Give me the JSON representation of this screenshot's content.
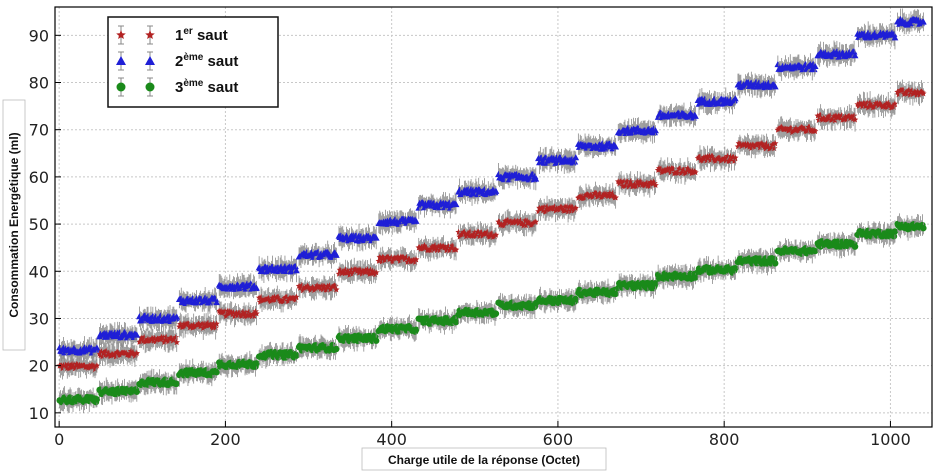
{
  "chart_data": {
    "type": "scatter",
    "xlabel": "Charge utile de la réponse (Octet)",
    "ylabel": "Consommation Energétique (ml)",
    "xlim": [
      -5,
      1050
    ],
    "ylim": [
      7,
      96
    ],
    "xticks": [
      0,
      200,
      400,
      600,
      800,
      1000
    ],
    "yticks": [
      10,
      20,
      30,
      40,
      50,
      60,
      70,
      80,
      90
    ],
    "x_tick_labels": [
      "0",
      "200",
      "400",
      "600",
      "800",
      "1000"
    ],
    "y_tick_labels": [
      "10",
      "20",
      "30",
      "40",
      "50",
      "60",
      "70",
      "80",
      "90"
    ],
    "grid": true,
    "legend_position": "top-left",
    "step_width": 48,
    "points_per_step": 40,
    "error_bar": 1.8,
    "series": [
      {
        "legend_main": "1",
        "legend_sup": "er",
        "legend_tail": " saut",
        "marker": "star",
        "color": "#b22222",
        "step_starts": [
          0,
          48,
          96,
          144,
          192,
          240,
          288,
          336,
          384,
          432,
          480,
          528,
          576,
          624,
          672,
          720,
          768,
          816,
          864,
          912,
          960,
          1008
        ],
        "values": [
          19.8,
          22.5,
          25.5,
          28.5,
          31.0,
          34.0,
          36.5,
          39.8,
          42.5,
          45.0,
          47.8,
          50.2,
          53.2,
          56.0,
          58.5,
          61.3,
          63.8,
          66.5,
          70.0,
          72.5,
          75.2,
          77.8
        ]
      },
      {
        "legend_main": "2",
        "legend_sup": "ème",
        "legend_tail": " saut",
        "marker": "triangle",
        "color": "#1f1fd6",
        "step_starts": [
          0,
          48,
          96,
          144,
          192,
          240,
          288,
          336,
          384,
          432,
          480,
          528,
          576,
          624,
          672,
          720,
          768,
          816,
          864,
          912,
          960,
          1008
        ],
        "values": [
          23.3,
          26.5,
          30.0,
          33.8,
          36.8,
          40.5,
          43.5,
          47.0,
          50.5,
          54.0,
          56.8,
          60.0,
          63.5,
          66.5,
          69.8,
          73.0,
          76.0,
          79.5,
          83.3,
          86.0,
          90.0,
          92.8
        ]
      },
      {
        "legend_main": "3",
        "legend_sup": "ème",
        "legend_tail": " saut",
        "marker": "circle",
        "color": "#1a8a1a",
        "step_starts": [
          0,
          48,
          96,
          144,
          192,
          240,
          288,
          336,
          384,
          432,
          480,
          528,
          576,
          624,
          672,
          720,
          768,
          816,
          864,
          912,
          960,
          1008
        ],
        "values": [
          12.8,
          14.5,
          16.5,
          18.5,
          20.3,
          22.3,
          23.8,
          25.8,
          27.8,
          29.5,
          31.3,
          32.8,
          33.8,
          35.5,
          37.0,
          39.0,
          40.3,
          42.2,
          44.3,
          45.8,
          48.0,
          49.5
        ]
      }
    ]
  }
}
